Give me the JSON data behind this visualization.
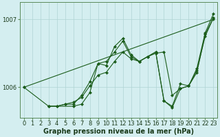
{
  "bg_color": "#d4eef0",
  "grid_color": "#b0d4d4",
  "line_color": "#1a5c1a",
  "marker_color": "#1a5c1a",
  "xlabel": "Graphe pression niveau de la mer (hPa)",
  "xlabel_fontsize": 7,
  "tick_fontsize": 6,
  "yticks": [
    1006,
    1007
  ],
  "ylim": [
    1005.55,
    1007.25
  ],
  "xlim": [
    -0.5,
    23.5
  ],
  "xticks": [
    0,
    1,
    2,
    3,
    4,
    5,
    6,
    7,
    8,
    9,
    10,
    11,
    12,
    13,
    14,
    15,
    16,
    17,
    18,
    19,
    20,
    21,
    22,
    23
  ],
  "series": [
    {
      "x": [
        0,
        23
      ],
      "y": [
        1006.0,
        1007.0
      ]
    },
    {
      "x": [
        0,
        3,
        4,
        5,
        6,
        7,
        8,
        9,
        10,
        11,
        12,
        13,
        14,
        15,
        16,
        17,
        18,
        19,
        20,
        21,
        22,
        23
      ],
      "y": [
        1006.0,
        1005.72,
        1005.72,
        1005.75,
        1005.78,
        1005.85,
        1006.02,
        1006.18,
        1006.22,
        1006.38,
        1006.52,
        1006.42,
        1006.38,
        1006.45,
        1006.5,
        1006.52,
        1005.88,
        1005.98,
        1006.02,
        1006.25,
        1006.75,
        1007.02
      ]
    },
    {
      "x": [
        3,
        4,
        5,
        6,
        7,
        8,
        9,
        10,
        11,
        12,
        13,
        14,
        15,
        16,
        17,
        18,
        19,
        20,
        21,
        22,
        23
      ],
      "y": [
        1005.72,
        1005.72,
        1005.75,
        1005.75,
        1005.88,
        1006.08,
        1006.35,
        1006.38,
        1006.52,
        1006.68,
        1006.45,
        1006.38,
        1006.45,
        1006.52,
        1005.8,
        1005.72,
        1006.05,
        1006.02,
        1006.28,
        1006.8,
        1007.08
      ]
    },
    {
      "x": [
        3,
        6,
        7,
        8,
        9,
        10,
        11,
        12,
        13,
        14,
        15,
        16,
        17,
        18,
        19,
        20,
        21,
        22,
        23
      ],
      "y": [
        1005.72,
        1005.72,
        1005.75,
        1005.92,
        1006.35,
        1006.32,
        1006.6,
        1006.72,
        1006.48,
        1006.38,
        1006.45,
        1006.52,
        1005.8,
        1005.7,
        1005.98,
        1006.02,
        1006.22,
        1006.78,
        1007.02
      ]
    }
  ]
}
